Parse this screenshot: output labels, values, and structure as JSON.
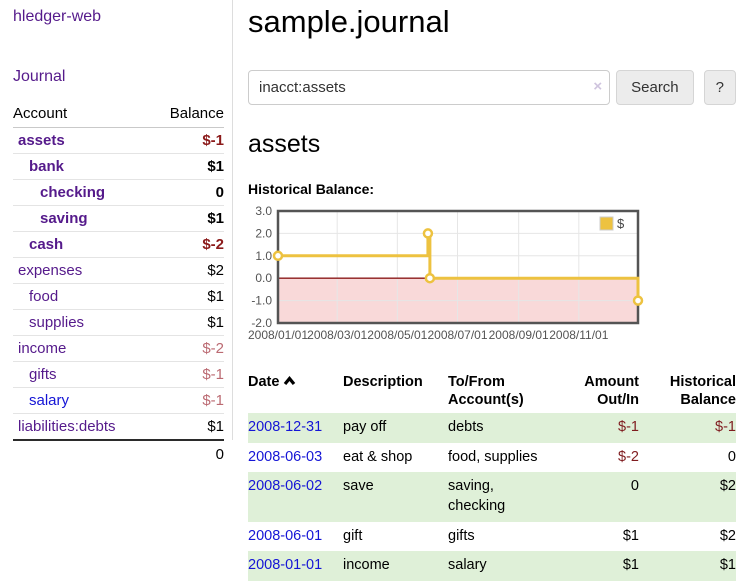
{
  "page": {
    "title": "sample.journal",
    "account_heading": "assets",
    "chart_label": "Historical Balance:"
  },
  "sidebar": {
    "brand": "hledger-web",
    "nav_journal": "Journal",
    "accounts_table": {
      "col_account": "Account",
      "col_balance": "Balance",
      "rows": [
        {
          "name": "assets",
          "balance": "$-1"
        },
        {
          "name": "bank",
          "balance": "$1"
        },
        {
          "name": "checking",
          "balance": "0"
        },
        {
          "name": "saving",
          "balance": "$1"
        },
        {
          "name": "cash",
          "balance": "$-2"
        },
        {
          "name": "expenses",
          "balance": "$2"
        },
        {
          "name": "food",
          "balance": "$1"
        },
        {
          "name": "supplies",
          "balance": "$1"
        },
        {
          "name": "income",
          "balance": "$-2"
        },
        {
          "name": "gifts",
          "balance": "$-1"
        },
        {
          "name": "salary",
          "balance": "$-1"
        },
        {
          "name": "liabilities:debts",
          "balance": "$1"
        }
      ],
      "total": "0"
    }
  },
  "search": {
    "value": "inacct:assets",
    "clear_icon": "×",
    "button_label": "Search",
    "help_label": "?"
  },
  "register": {
    "headers": {
      "date": "Date",
      "description": "Description",
      "accounts": "To/From Account(s)",
      "amount": "Amount Out/In",
      "balance": "Historical Balance"
    },
    "rows": [
      {
        "date": "2008-12-31",
        "description": "pay off",
        "accounts": "debts",
        "amount": "$-1",
        "balance": "$-1"
      },
      {
        "date": "2008-06-03",
        "description": "eat & shop",
        "accounts": "food, supplies",
        "amount": "$-2",
        "balance": "0"
      },
      {
        "date": "2008-06-02",
        "description": "save",
        "accounts": "saving, checking",
        "amount": "0",
        "balance": "$2"
      },
      {
        "date": "2008-06-01",
        "description": "gift",
        "accounts": "gifts",
        "amount": "$1",
        "balance": "$2"
      },
      {
        "date": "2008-01-01",
        "description": "income",
        "accounts": "salary",
        "amount": "$1",
        "balance": "$1"
      }
    ]
  },
  "chart_data": {
    "type": "line",
    "title": "Historical Balance:",
    "step": true,
    "series": [
      {
        "name": "$",
        "color": "#edc240",
        "points": [
          [
            "2008-01-01",
            1
          ],
          [
            "2008-06-01",
            2
          ],
          [
            "2008-06-03",
            0
          ],
          [
            "2008-12-31",
            -1
          ]
        ]
      }
    ],
    "x_range": [
      "2008-01-01",
      "2008-12-31"
    ],
    "xticks": [
      "2008/01/01",
      "2008/03/01",
      "2008/05/01",
      "2008/07/01",
      "2008/09/01",
      "2008/11/01"
    ],
    "yticks": [
      3.0,
      2.0,
      1.0,
      0.0,
      -1.0,
      -2.0
    ],
    "ylim": [
      -2,
      3
    ],
    "grid": true,
    "legend_position": "top-right",
    "colors": {
      "line": "#edc240",
      "marker_fill": "#ffffff",
      "negative_region": "#f9d9d9",
      "zero_line": "#8b1a1a",
      "gridline": "#e6e6e6",
      "plot_border": "#545454",
      "tick_text": "#545454"
    }
  }
}
